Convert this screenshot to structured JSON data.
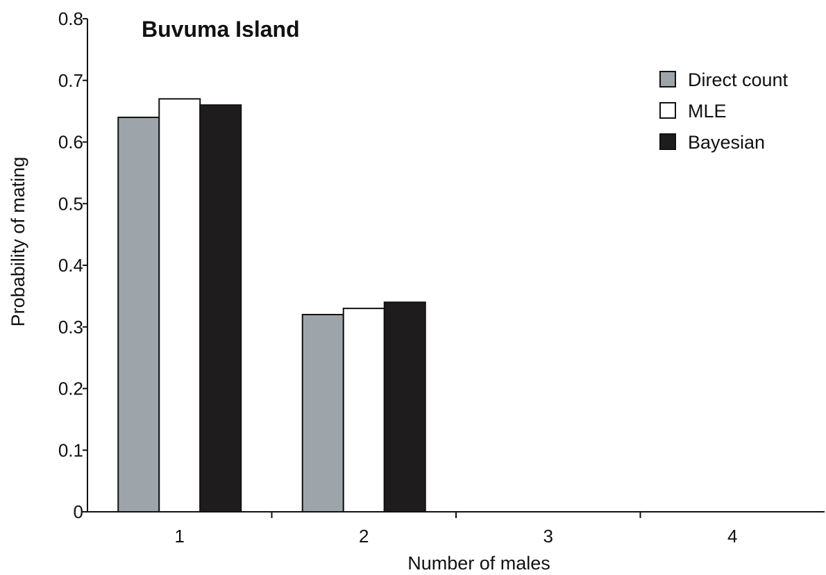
{
  "chart_data": {
    "type": "bar",
    "title": "Buvuma Island",
    "xlabel": "Number of males",
    "ylabel": "Probability of mating",
    "categories": [
      "1",
      "2",
      "3",
      "4"
    ],
    "series": [
      {
        "name": "Direct count",
        "color": "#9ea5aa",
        "values": [
          0.64,
          0.32,
          0,
          0
        ]
      },
      {
        "name": "MLE",
        "color": "#ffffff",
        "values": [
          0.67,
          0.33,
          0,
          0
        ]
      },
      {
        "name": "Bayesian",
        "color": "#1e1c1d",
        "values": [
          0.66,
          0.34,
          0,
          0
        ]
      }
    ],
    "ylim": [
      0,
      0.8
    ],
    "yticks": [
      "0",
      "0.1",
      "0.2",
      "0.3",
      "0.4",
      "0.5",
      "0.6",
      "0.7",
      "0.8"
    ],
    "grid": false,
    "legend_position": "top-right"
  }
}
